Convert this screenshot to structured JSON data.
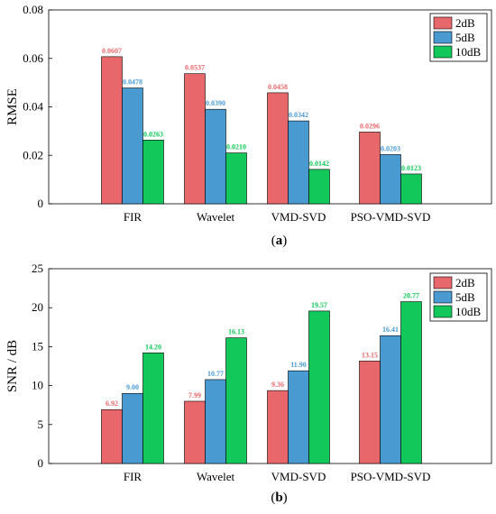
{
  "colors": {
    "2dB": "#e8676a",
    "5dB": "#4a9ad2",
    "10dB": "#12c85a"
  },
  "chart_data": [
    {
      "type": "bar",
      "categories": [
        "FIR",
        "Wavelet",
        "VMD-SVD",
        "PSO-VMD-SVD"
      ],
      "series": [
        {
          "name": "2dB",
          "values": [
            0.0607,
            0.0537,
            0.0458,
            0.0296
          ],
          "labels": [
            "0.0607",
            "0.0537",
            "0.0458",
            "0.0296"
          ]
        },
        {
          "name": "5dB",
          "values": [
            0.0478,
            0.039,
            0.0342,
            0.0203
          ],
          "labels": [
            "0.0478",
            "0.0390",
            "0.0342",
            "0.0203"
          ]
        },
        {
          "name": "10dB",
          "values": [
            0.0263,
            0.021,
            0.0142,
            0.0123
          ],
          "labels": [
            "0.0263",
            "0.0210",
            "0.0142",
            "0.0123"
          ]
        }
      ],
      "ylabel": "RMSE",
      "ylim": [
        0,
        0.08
      ],
      "yticks": [
        0,
        0.02,
        0.04,
        0.06,
        0.08
      ],
      "ytick_labels": [
        "0",
        "0.02",
        "0.04",
        "0.06",
        "0.08"
      ],
      "caption_letter": "a",
      "legend": "top-right",
      "grid": false
    },
    {
      "type": "bar",
      "categories": [
        "FIR",
        "Wavelet",
        "VMD-SVD",
        "PSO-VMD-SVD"
      ],
      "series": [
        {
          "name": "2dB",
          "values": [
            6.92,
            7.99,
            9.36,
            13.15
          ],
          "labels": [
            "6.92",
            "7.99",
            "9.36",
            "13.15"
          ]
        },
        {
          "name": "5dB",
          "values": [
            9.0,
            10.77,
            11.9,
            16.41
          ],
          "labels": [
            "9.00",
            "10.77",
            "11.90",
            "16.41"
          ]
        },
        {
          "name": "10dB",
          "values": [
            14.2,
            16.13,
            19.57,
            20.77
          ],
          "labels": [
            "14.20",
            "16.13",
            "19.57",
            "20.77"
          ]
        }
      ],
      "ylabel": "SNR / dB",
      "ylim": [
        0,
        25
      ],
      "yticks": [
        0,
        5,
        10,
        15,
        20,
        25
      ],
      "ytick_labels": [
        "0",
        "5",
        "10",
        "15",
        "20",
        "25"
      ],
      "caption_letter": "b",
      "legend": "top-right",
      "grid": false
    }
  ]
}
